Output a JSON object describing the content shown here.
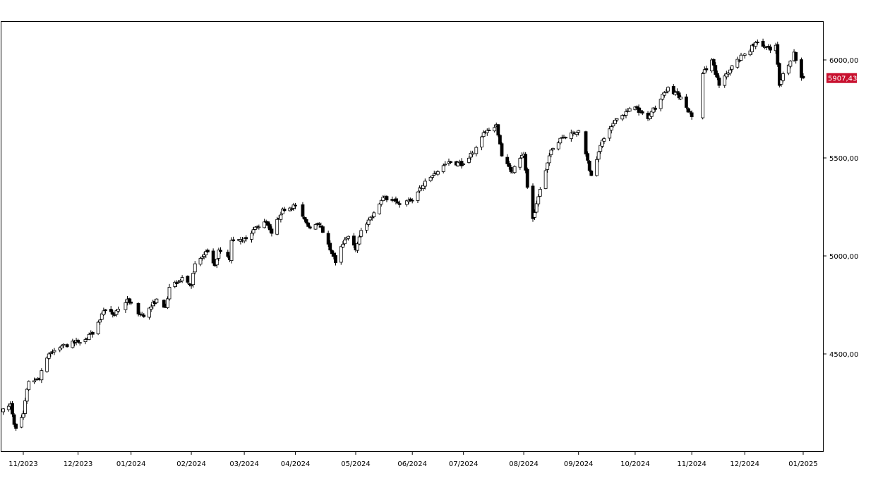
{
  "chart_data": {
    "type": "candlestick",
    "title": "",
    "xlabel": "",
    "ylabel": "",
    "ylim": [
      4050,
      6200
    ],
    "x_ticks": [
      {
        "date": "2023-10-31",
        "label": "11/2023"
      },
      {
        "date": "2023-11-30",
        "label": "12/2023"
      },
      {
        "date": "2023-12-29",
        "label": "01/2024"
      },
      {
        "date": "2024-01-31",
        "label": "02/2024"
      },
      {
        "date": "2024-02-29",
        "label": "03/2024"
      },
      {
        "date": "2024-03-28",
        "label": "04/2024"
      },
      {
        "date": "2024-04-30",
        "label": "05/2024"
      },
      {
        "date": "2024-05-31",
        "label": "06/2024"
      },
      {
        "date": "2024-06-28",
        "label": "07/2024"
      },
      {
        "date": "2024-07-31",
        "label": "08/2024"
      },
      {
        "date": "2024-08-30",
        "label": "09/2024"
      },
      {
        "date": "2024-09-30",
        "label": "10/2024"
      },
      {
        "date": "2024-10-31",
        "label": "11/2024"
      },
      {
        "date": "2024-11-29",
        "label": "12/2024"
      },
      {
        "date": "2024-12-31",
        "label": "01/2025"
      }
    ],
    "y_ticks": [
      {
        "value": 4500,
        "label": "4500,00"
      },
      {
        "value": 5000,
        "label": "5000,00"
      },
      {
        "value": 5500,
        "label": "5500,00"
      },
      {
        "value": 6000,
        "label": "6000,00"
      }
    ],
    "last_price": {
      "value": 5907.43,
      "label": "5907,43",
      "color": "#c8102e"
    },
    "start_date": "2023-10-20",
    "close_anchors": [
      [
        "2023-10-20",
        4220
      ],
      [
        "2023-10-24",
        4245
      ],
      [
        "2023-10-26",
        4140
      ],
      [
        "2023-10-27",
        4120
      ],
      [
        "2023-10-31",
        4195
      ],
      [
        "2023-11-02",
        4320
      ],
      [
        "2023-11-03",
        4360
      ],
      [
        "2023-11-09",
        4370
      ],
      [
        "2023-11-10",
        4415
      ],
      [
        "2023-11-14",
        4500
      ],
      [
        "2023-11-21",
        4540
      ],
      [
        "2023-11-30",
        4560
      ],
      [
        "2023-12-08",
        4600
      ],
      [
        "2023-12-14",
        4720
      ],
      [
        "2023-12-20",
        4700
      ],
      [
        "2023-12-27",
        4780
      ],
      [
        "2024-01-03",
        4700
      ],
      [
        "2024-01-05",
        4690
      ],
      [
        "2024-01-12",
        4780
      ],
      [
        "2024-01-17",
        4740
      ],
      [
        "2024-01-19",
        4840
      ],
      [
        "2024-01-26",
        4890
      ],
      [
        "2024-01-31",
        4850
      ],
      [
        "2024-02-02",
        4960
      ],
      [
        "2024-02-09",
        5020
      ],
      [
        "2024-02-13",
        4950
      ],
      [
        "2024-02-15",
        5030
      ],
      [
        "2024-02-21",
        4980
      ],
      [
        "2024-02-22",
        5080
      ],
      [
        "2024-02-29",
        5090
      ],
      [
        "2024-03-07",
        5150
      ],
      [
        "2024-03-12",
        5170
      ],
      [
        "2024-03-15",
        5115
      ],
      [
        "2024-03-21",
        5240
      ],
      [
        "2024-03-28",
        5255
      ],
      [
        "2024-04-04",
        5150
      ],
      [
        "2024-04-10",
        5160
      ],
      [
        "2024-04-12",
        5120
      ],
      [
        "2024-04-15",
        5060
      ],
      [
        "2024-04-19",
        4965
      ],
      [
        "2024-04-23",
        5060
      ],
      [
        "2024-04-26",
        5100
      ],
      [
        "2024-04-30",
        5030
      ],
      [
        "2024-05-03",
        5130
      ],
      [
        "2024-05-10",
        5220
      ],
      [
        "2024-05-15",
        5300
      ],
      [
        "2024-05-23",
        5270
      ],
      [
        "2024-05-31",
        5280
      ],
      [
        "2024-06-05",
        5350
      ],
      [
        "2024-06-12",
        5420
      ],
      [
        "2024-06-20",
        5480
      ],
      [
        "2024-06-28",
        5470
      ],
      [
        "2024-07-10",
        5630
      ],
      [
        "2024-07-16",
        5670
      ],
      [
        "2024-07-19",
        5510
      ],
      [
        "2024-07-24",
        5430
      ],
      [
        "2024-07-31",
        5520
      ],
      [
        "2024-08-02",
        5350
      ],
      [
        "2024-08-05",
        5190
      ],
      [
        "2024-08-09",
        5340
      ],
      [
        "2024-08-15",
        5540
      ],
      [
        "2024-08-20",
        5600
      ],
      [
        "2024-08-30",
        5640
      ],
      [
        "2024-09-03",
        5520
      ],
      [
        "2024-09-06",
        5410
      ],
      [
        "2024-09-12",
        5590
      ],
      [
        "2024-09-20",
        5700
      ],
      [
        "2024-09-30",
        5760
      ],
      [
        "2024-10-07",
        5700
      ],
      [
        "2024-10-18",
        5860
      ],
      [
        "2024-10-25",
        5810
      ],
      [
        "2024-10-31",
        5710
      ],
      [
        "2024-11-05",
        5780
      ],
      [
        "2024-11-06",
        5930
      ],
      [
        "2024-11-11",
        6000
      ],
      [
        "2024-11-15",
        5870
      ],
      [
        "2024-11-22",
        5970
      ],
      [
        "2024-11-29",
        6030
      ],
      [
        "2024-12-06",
        6090
      ],
      [
        "2024-12-13",
        6050
      ],
      [
        "2024-12-16",
        6075
      ],
      [
        "2024-12-18",
        5870
      ],
      [
        "2024-12-20",
        5930
      ],
      [
        "2024-12-26",
        6040
      ],
      [
        "2024-12-30",
        5910
      ],
      [
        "2024-12-31",
        5907.43
      ]
    ],
    "gap_ranges": [
      [
        "2024-11-01",
        "2024-11-05"
      ]
    ]
  }
}
